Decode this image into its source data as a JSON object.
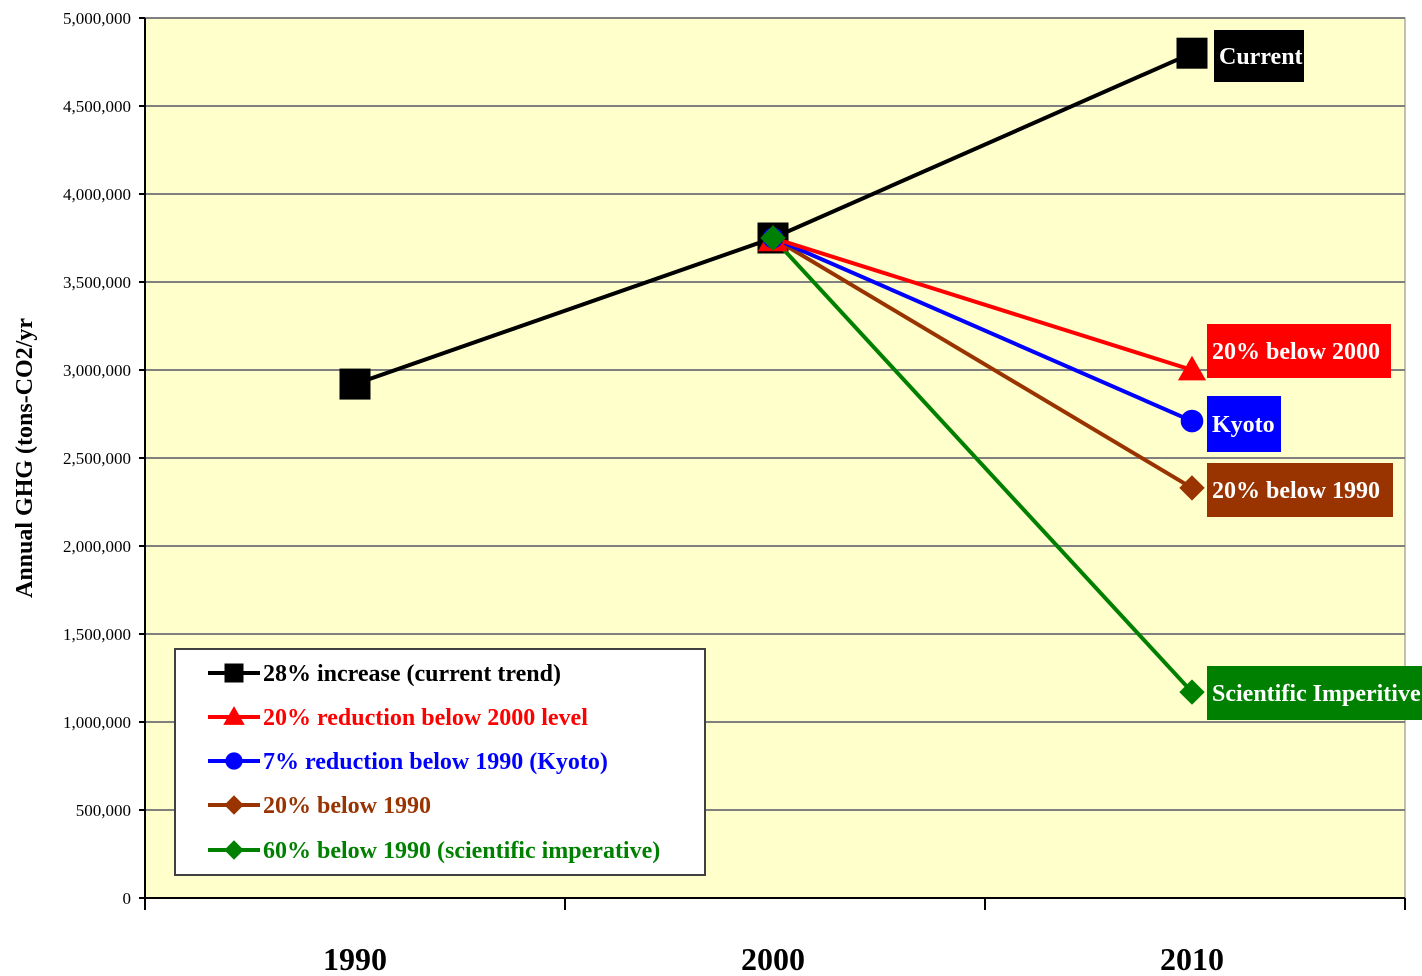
{
  "chart_data": {
    "type": "line",
    "title": "",
    "xlabel": "",
    "ylabel": "Annual GHG (tons-CO2/yr",
    "categories": [
      "1990",
      "2000",
      "2010"
    ],
    "ylim": [
      0,
      5000000
    ],
    "y_ticks": [
      0,
      500000,
      1000000,
      1500000,
      2000000,
      2500000,
      3000000,
      3500000,
      4000000,
      4500000,
      5000000
    ],
    "y_tick_labels": [
      "0",
      "500,000",
      "1,000,000",
      "1,500,000",
      "2,000,000",
      "2,500,000",
      "3,000,000",
      "3,500,000",
      "4,000,000",
      "4,500,000",
      "5,000,000"
    ],
    "grid": true,
    "plot_background": "#ffffcc",
    "legend_position": "bottom-left inside plot",
    "series": [
      {
        "name": "28% increase (current trend)",
        "color": "#000000",
        "marker": "square",
        "points": [
          {
            "x": "1990",
            "y": 2920000
          },
          {
            "x": "2000",
            "y": 3750000
          },
          {
            "x": "2010",
            "y": 4800000
          }
        ],
        "end_label": "Current",
        "end_label_bg": "#000000"
      },
      {
        "name": "20% reduction below 2000 level",
        "color": "#ff0000",
        "marker": "triangle",
        "points": [
          {
            "x": "2000",
            "y": 3750000
          },
          {
            "x": "2010",
            "y": 3000000
          }
        ],
        "end_label": "20% below 2000",
        "end_label_bg": "#ff0000"
      },
      {
        "name": "7% reduction below 1990 (Kyoto)",
        "color": "#0000ff",
        "marker": "circle",
        "points": [
          {
            "x": "2000",
            "y": 3750000
          },
          {
            "x": "2010",
            "y": 2710000
          }
        ],
        "end_label": "Kyoto",
        "end_label_bg": "#0000ff"
      },
      {
        "name": "20% below 1990",
        "color": "#993300",
        "marker": "diamond",
        "points": [
          {
            "x": "2000",
            "y": 3750000
          },
          {
            "x": "2010",
            "y": 2330000
          }
        ],
        "end_label": "20% below 1990",
        "end_label_bg": "#993300"
      },
      {
        "name": "60% below 1990 (scientific imperative)",
        "color": "#008000",
        "marker": "diamond",
        "points": [
          {
            "x": "2000",
            "y": 3750000
          },
          {
            "x": "2010",
            "y": 1170000
          }
        ],
        "end_label": "Scientific Imperitive",
        "end_label_bg": "#008000"
      }
    ]
  }
}
